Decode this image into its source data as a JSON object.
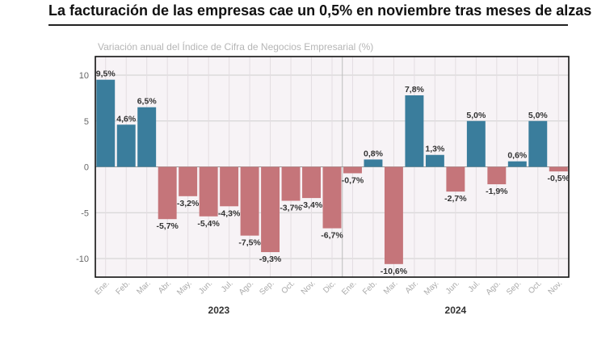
{
  "header": {
    "title": "La facturación de las empresas cae un 0,5% en noviembre tras meses de alzas",
    "subtitle": "Variación anual del Índice de Cifra de Negocios Empresarial (%)"
  },
  "colors": {
    "positive": "#3a7d9c",
    "negative": "#c5757a",
    "plot_background": "#f7f3f6",
    "grid": "#cfcfcf",
    "frame": "#111111"
  },
  "chart_data": {
    "type": "bar",
    "title": "La facturación de las empresas cae un 0,5% en noviembre tras meses de alzas",
    "subtitle": "Variación anual del Índice de Cifra de Negocios Empresarial (%)",
    "xlabel": "",
    "ylabel": "",
    "ylim": [
      -12,
      12
    ],
    "yticks": [
      10,
      5,
      0,
      -5,
      -10
    ],
    "grid": true,
    "categories": [
      "Ene.",
      "Feb.",
      "Mar.",
      "Abr.",
      "May.",
      "Jun.",
      "Jul.",
      "Ago.",
      "Sep.",
      "Oct.",
      "Nov.",
      "Dic.",
      "Ene.",
      "Feb.",
      "Mar.",
      "Abr.",
      "May.",
      "Jun.",
      "Jul.",
      "Ago.",
      "Sep.",
      "Oct.",
      "Nov."
    ],
    "values": [
      9.5,
      4.6,
      6.5,
      -5.7,
      -3.2,
      -5.4,
      -4.3,
      -7.5,
      -9.3,
      -3.7,
      -3.4,
      -6.7,
      -0.7,
      0.8,
      -10.6,
      7.8,
      1.3,
      -2.7,
      5.0,
      -1.9,
      0.6,
      5.0,
      -0.5
    ],
    "value_labels": [
      "9,5%",
      "4,6%",
      "6,5%",
      "-5,7%",
      "-3,2%",
      "-5,4%",
      "-4,3%",
      "-7,5%",
      "-9,3%",
      "-3,7%",
      "-3,4%",
      "-6,7%",
      "-0,7%",
      "0,8%",
      "-10,6%",
      "7,8%",
      "1,3%",
      "-2,7%",
      "5,0%",
      "-1,9%",
      "0,6%",
      "5,0%",
      "-0,5%"
    ],
    "year_groups": [
      {
        "label": "2023",
        "start": 0,
        "end": 11
      },
      {
        "label": "2024",
        "start": 12,
        "end": 22
      }
    ]
  }
}
